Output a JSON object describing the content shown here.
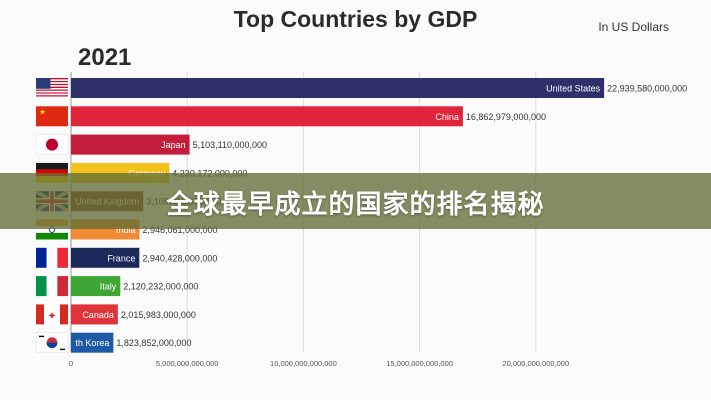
{
  "header": {
    "title": "Top Countries by GDP",
    "units": "In US Dollars",
    "year": "2021"
  },
  "overlay": {
    "caption": "全球最早成立的国家的排名揭秘"
  },
  "chart_data": {
    "type": "bar",
    "orientation": "horizontal",
    "title": "Top Countries by GDP",
    "subtitle": "In US Dollars",
    "categories": [
      "United States",
      "China",
      "Japan",
      "Germany",
      "United Kingdom",
      "India",
      "France",
      "Italy",
      "Canada",
      "South Korea"
    ],
    "values": [
      22939580000000,
      16862979000000,
      5103110000000,
      4230172000000,
      3108416000000,
      2946061000000,
      2940428000000,
      2120232000000,
      2015983000000,
      1823852000000
    ],
    "value_labels": [
      "22,939,580,000,000",
      "16,862,979,000,000",
      "5,103,110,000,000",
      "4,230,172,000,000",
      "3,108,416,000,000",
      "2,946,061,000,000",
      "2,940,428,000,000",
      "2,120,232,000,000",
      "2,015,983,000,000",
      "1,823,852,000,000"
    ],
    "bar_labels": [
      "United States",
      "China",
      "Japan",
      "Germany",
      "United Kingdom",
      "India",
      "France",
      "Italy",
      "Canada",
      "th Korea"
    ],
    "flags": [
      "usa-flag",
      "china-flag",
      "japan-flag",
      "germany-flag",
      "uk-flag",
      "india-flag",
      "france-flag",
      "italy-flag",
      "canada-flag",
      "south-korea-flag"
    ],
    "colors": [
      "#2e2f6b",
      "#e0243a",
      "#c31d3b",
      "#f2c21b",
      "#8f3a2b",
      "#f08a35",
      "#1b2a5a",
      "#3fa535",
      "#e0343a",
      "#1c5aa6"
    ],
    "xticks": [
      0,
      5000000000000,
      10000000000000,
      15000000000000,
      20000000000000
    ],
    "xtick_labels": [
      "0",
      "5,000,000,000,000",
      "10,000,000,000,000",
      "15,000,000,000,000",
      "20,000,000,000,000"
    ],
    "xlim": [
      0,
      25000000000000
    ],
    "grid": true
  }
}
